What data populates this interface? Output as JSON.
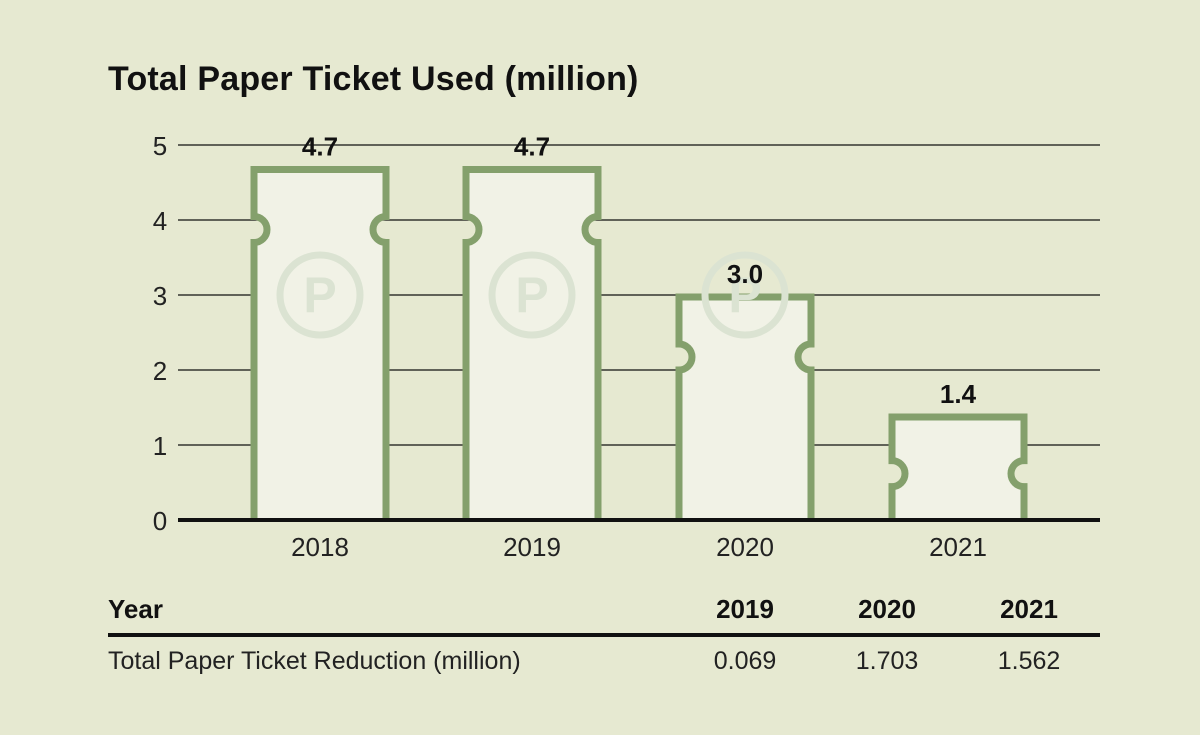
{
  "title": "Total Paper Ticket Used (million)",
  "colors": {
    "background": "#e6e9d1",
    "ticket_stroke": "#84a06c",
    "ticket_fill": "#f1f2e6",
    "watermark": "#dbe3d2",
    "grid": "#111111"
  },
  "icons": {
    "watermark": "parking-p-icon"
  },
  "chart_data": {
    "type": "bar",
    "title": "Total Paper Ticket Used (million)",
    "categories": [
      "2018",
      "2019",
      "2020",
      "2021"
    ],
    "values": [
      4.7,
      4.7,
      3.0,
      1.4
    ],
    "data_labels": [
      "4.7",
      "4.7",
      "3.0",
      "1.4"
    ],
    "y_ticks": [
      "0",
      "1",
      "2",
      "3",
      "4",
      "5"
    ],
    "ylim": [
      0,
      5
    ],
    "grid": true,
    "xlabel": "",
    "ylabel": ""
  },
  "table": {
    "header": [
      "Year",
      "2019",
      "2020",
      "2021"
    ],
    "rows": [
      {
        "label": "Total Paper Ticket Reduction (million)",
        "values": [
          "0.069",
          "1.703",
          "1.562"
        ]
      }
    ]
  }
}
